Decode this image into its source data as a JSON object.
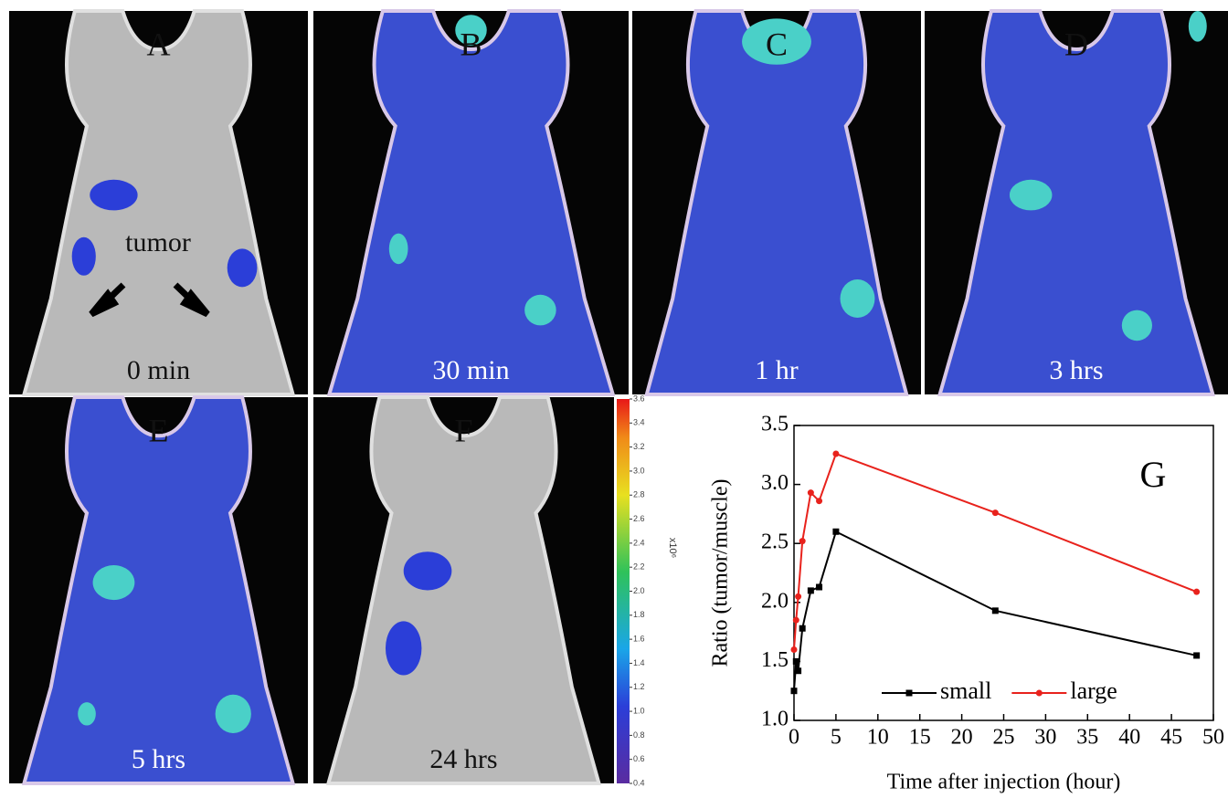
{
  "panels": [
    {
      "letter": "A",
      "time": "0 min"
    },
    {
      "letter": "B",
      "time": "30 min"
    },
    {
      "letter": "C",
      "time": "1 hr"
    },
    {
      "letter": "D",
      "time": "3 hrs"
    },
    {
      "letter": "E",
      "time": "5 hrs"
    },
    {
      "letter": "F",
      "time": "24 hrs"
    }
  ],
  "annotation": "tumor",
  "colorbar": {
    "unit_label": "x10⁶",
    "lim": [
      0.4,
      3.6
    ],
    "ticks": [
      0.4,
      0.6,
      0.8,
      {
        "value": 1.0,
        "label": "1.0"
      },
      1.2,
      1.4,
      1.6,
      1.8,
      {
        "value": 2.0,
        "label": "2.0"
      },
      2.2,
      2.4,
      2.6,
      2.8,
      {
        "value": 3.0,
        "label": "3.0"
      },
      3.2,
      3.4,
      3.6
    ]
  },
  "chart_data": {
    "type": "line",
    "annotation": "G",
    "x_label": "Time after injection (hour)",
    "y_label": "Ratio (tumor/muscle)",
    "x": [
      0,
      0.25,
      0.5,
      1,
      2,
      3,
      5,
      24,
      48
    ],
    "series": [
      {
        "name": "small",
        "color": "#000000",
        "marker": "square",
        "values": [
          1.25,
          1.5,
          1.42,
          1.78,
          2.1,
          2.13,
          2.6,
          1.93,
          1.55
        ]
      },
      {
        "name": "large",
        "color": "#e8221c",
        "marker": "circle",
        "values": [
          1.6,
          1.85,
          2.05,
          2.52,
          2.93,
          2.86,
          3.26,
          2.76,
          2.09
        ]
      }
    ],
    "xlim": [
      0,
      50
    ],
    "xticks": [
      0,
      5,
      10,
      15,
      20,
      25,
      30,
      35,
      40,
      45,
      50
    ],
    "ylim": [
      1.0,
      3.5
    ],
    "yticks": [
      {
        "value": 1.0,
        "label": "1.0"
      },
      1.5,
      {
        "value": 2.0,
        "label": "2.0"
      },
      2.5,
      {
        "value": 3.0,
        "label": "3.0"
      },
      3.5
    ],
    "legend": "lower right",
    "grid": false
  }
}
